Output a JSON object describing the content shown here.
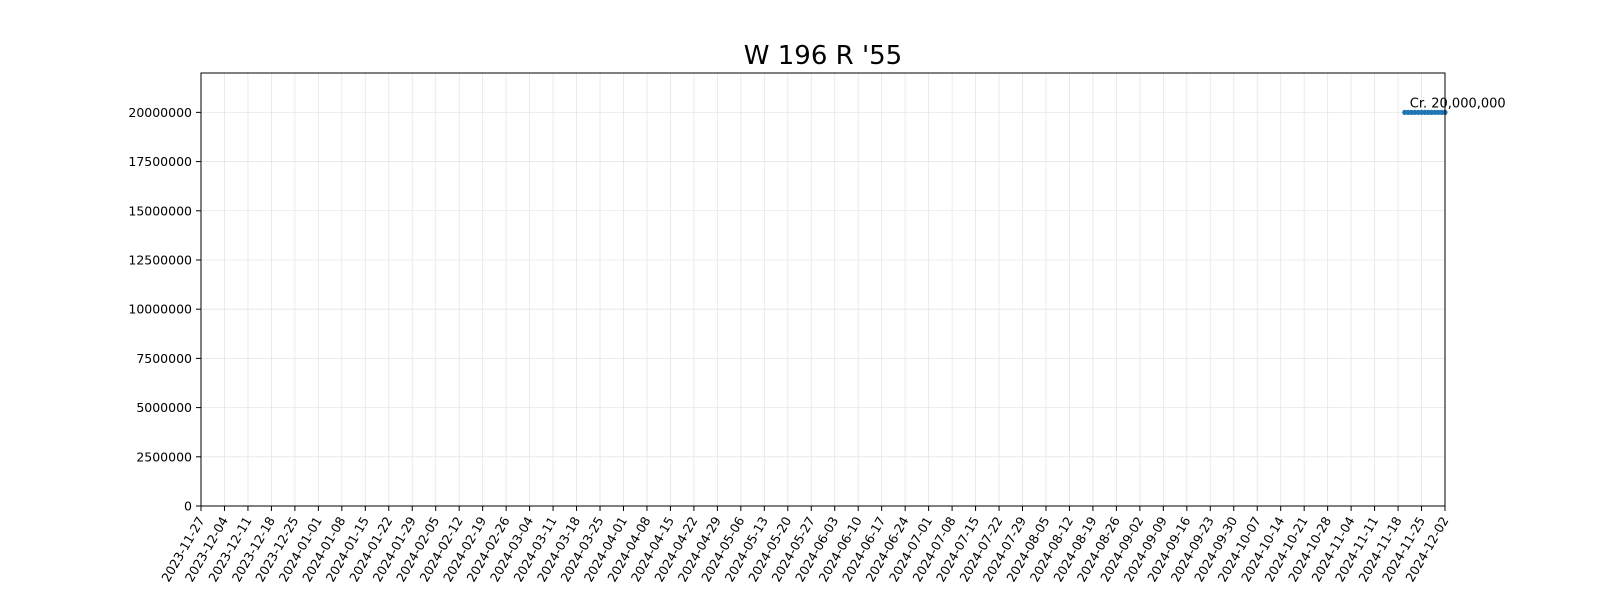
{
  "chart_data": {
    "type": "line",
    "title": "W 196 R '55",
    "xlabel": "",
    "ylabel": "",
    "x_axis_type": "date",
    "xlim": [
      "2023-11-27",
      "2024-12-02"
    ],
    "ylim": [
      0,
      22000000
    ],
    "x_ticks": [
      "2023-11-27",
      "2023-12-04",
      "2023-12-11",
      "2023-12-18",
      "2023-12-25",
      "2024-01-01",
      "2024-01-08",
      "2024-01-15",
      "2024-01-22",
      "2024-01-29",
      "2024-02-05",
      "2024-02-12",
      "2024-02-19",
      "2024-02-26",
      "2024-03-04",
      "2024-03-11",
      "2024-03-18",
      "2024-03-25",
      "2024-04-01",
      "2024-04-08",
      "2024-04-15",
      "2024-04-22",
      "2024-04-29",
      "2024-05-06",
      "2024-05-13",
      "2024-05-20",
      "2024-05-27",
      "2024-06-03",
      "2024-06-10",
      "2024-06-17",
      "2024-06-24",
      "2024-07-01",
      "2024-07-08",
      "2024-07-15",
      "2024-07-22",
      "2024-07-29",
      "2024-08-05",
      "2024-08-12",
      "2024-08-19",
      "2024-08-26",
      "2024-09-02",
      "2024-09-09",
      "2024-09-16",
      "2024-09-23",
      "2024-09-30",
      "2024-10-07",
      "2024-10-14",
      "2024-10-21",
      "2024-10-28",
      "2024-11-04",
      "2024-11-11",
      "2024-11-18",
      "2024-11-25",
      "2024-12-02"
    ],
    "y_ticks": [
      "0",
      "2500000",
      "5000000",
      "7500000",
      "10000000",
      "12500000",
      "15000000",
      "17500000",
      "20000000"
    ],
    "y_tick_values": [
      0,
      2500000,
      5000000,
      7500000,
      10000000,
      12500000,
      15000000,
      17500000,
      20000000
    ],
    "series": [
      {
        "color": "#1f77b4",
        "points": [
          {
            "x": "2024-11-20",
            "y": 20000000
          },
          {
            "x": "2024-11-21",
            "y": 20000000
          },
          {
            "x": "2024-11-22",
            "y": 20000000
          },
          {
            "x": "2024-11-23",
            "y": 20000000
          },
          {
            "x": "2024-11-24",
            "y": 20000000
          },
          {
            "x": "2024-11-25",
            "y": 20000000
          },
          {
            "x": "2024-11-26",
            "y": 20000000
          },
          {
            "x": "2024-11-27",
            "y": 20000000
          },
          {
            "x": "2024-11-28",
            "y": 20000000
          },
          {
            "x": "2024-11-29",
            "y": 20000000
          },
          {
            "x": "2024-11-30",
            "y": 20000000
          },
          {
            "x": "2024-12-01",
            "y": 20000000
          },
          {
            "x": "2024-12-02",
            "y": 20000000
          }
        ]
      }
    ],
    "annotations": [
      {
        "text": "Cr. 20,000,000",
        "x": "2024-11-20",
        "y": 20000000
      }
    ],
    "grid": true,
    "legend": "none"
  }
}
